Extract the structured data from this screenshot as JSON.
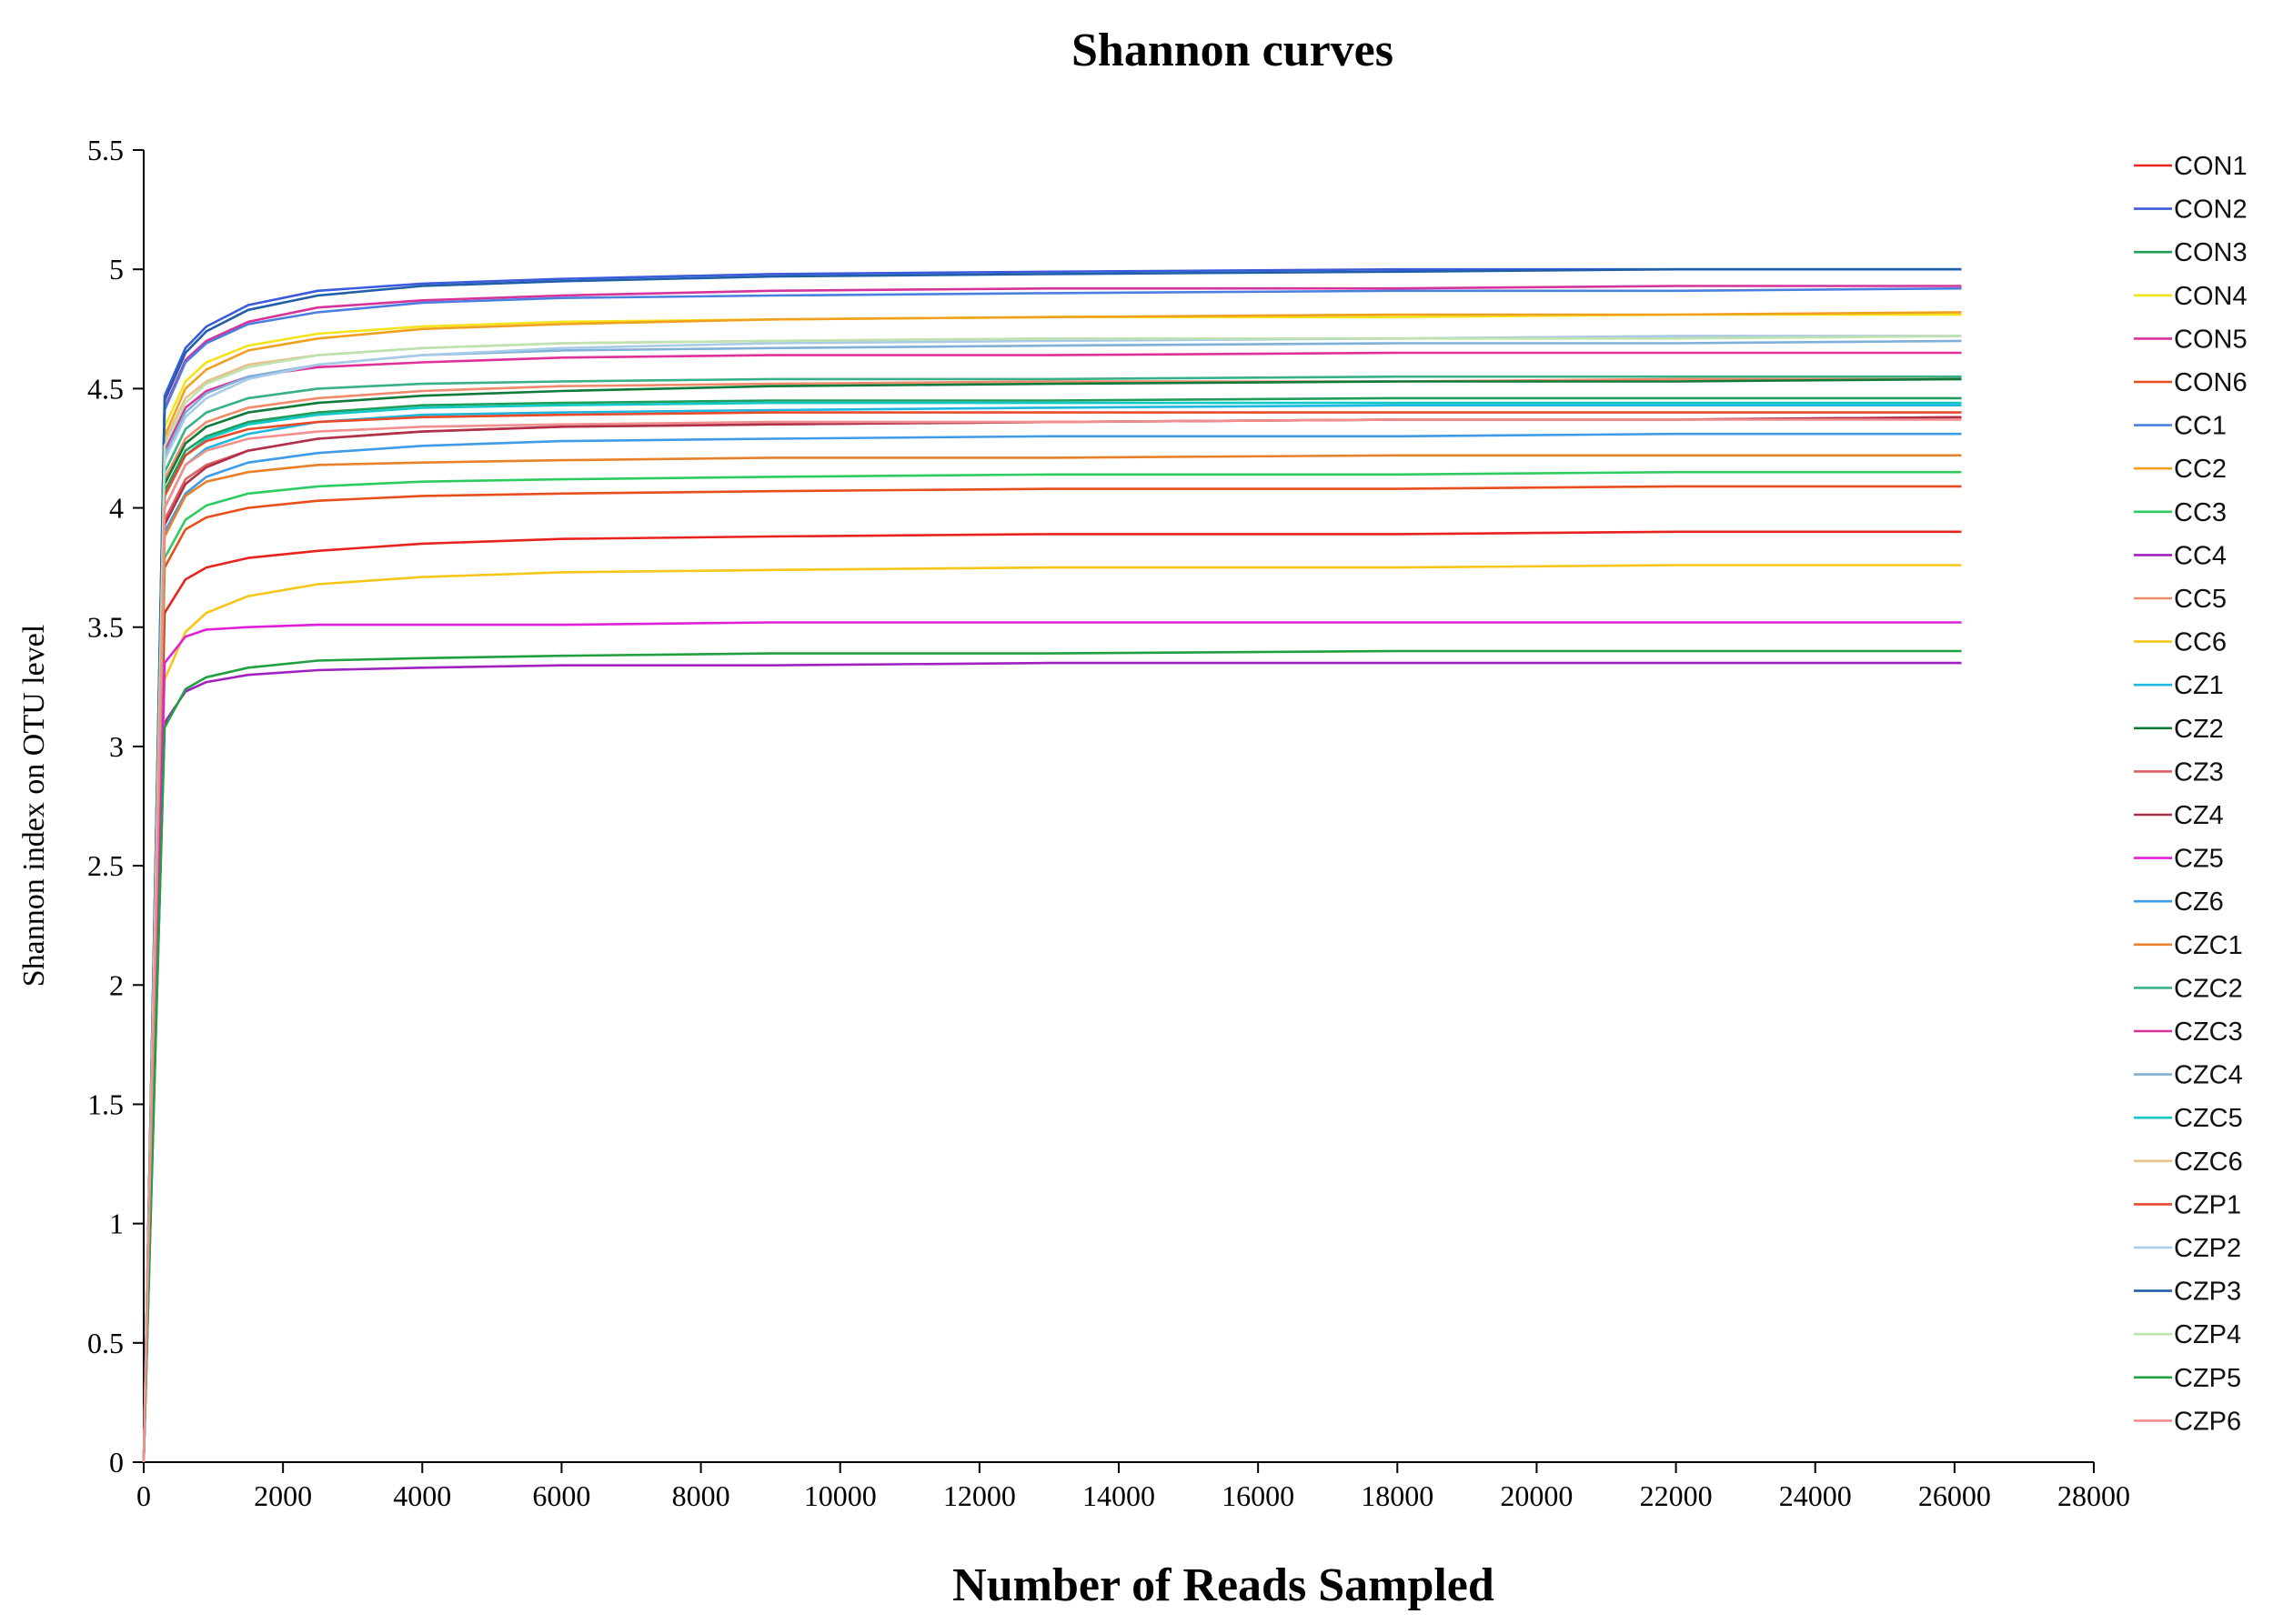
{
  "chart_data": {
    "type": "line",
    "title": "Shannon curves",
    "xlabel": "Number of Reads Sampled",
    "ylabel": "Shannon index on OTU level",
    "xlim": [
      0,
      28000
    ],
    "ylim": [
      0,
      5.5
    ],
    "x_ticks": [
      "0",
      "2000",
      "4000",
      "6000",
      "8000",
      "10000",
      "12000",
      "14000",
      "16000",
      "18000",
      "20000",
      "22000",
      "24000",
      "26000",
      "28000"
    ],
    "y_ticks": [
      "0",
      "0.5",
      "1",
      "1.5",
      "2",
      "2.5",
      "3",
      "3.5",
      "4",
      "4.5",
      "5",
      "5.5"
    ],
    "x_tick_values": [
      0,
      2000,
      4000,
      6000,
      8000,
      10000,
      12000,
      14000,
      16000,
      18000,
      20000,
      22000,
      24000,
      26000,
      28000
    ],
    "y_tick_values": [
      0,
      0.5,
      1,
      1.5,
      2,
      2.5,
      3,
      3.5,
      4,
      4.5,
      5,
      5.5
    ],
    "legend_position": "right",
    "grid": false,
    "x": [
      0,
      300,
      600,
      900,
      1500,
      2500,
      4000,
      6000,
      9000,
      13000,
      18000,
      22000,
      26100
    ],
    "series": [
      {
        "name": "CON1",
        "color": "#e8231f",
        "values": [
          0,
          3.56,
          3.7,
          3.75,
          3.79,
          3.82,
          3.85,
          3.87,
          3.88,
          3.89,
          3.89,
          3.9,
          3.9
        ]
      },
      {
        "name": "CON2",
        "color": "#3b5bdb",
        "values": [
          0,
          4.47,
          4.67,
          4.76,
          4.85,
          4.91,
          4.94,
          4.96,
          4.98,
          4.99,
          5.0,
          5.0,
          5.0
        ]
      },
      {
        "name": "CON3",
        "color": "#1e9e5a",
        "values": [
          0,
          4.07,
          4.24,
          4.3,
          4.36,
          4.4,
          4.43,
          4.44,
          4.45,
          4.45,
          4.46,
          4.46,
          4.46
        ]
      },
      {
        "name": "CON4",
        "color": "#f5e31a",
        "values": [
          0,
          4.34,
          4.53,
          4.61,
          4.68,
          4.73,
          4.76,
          4.78,
          4.79,
          4.8,
          4.8,
          4.81,
          4.81
        ]
      },
      {
        "name": "CON5",
        "color": "#d6339a",
        "values": [
          0,
          4.42,
          4.62,
          4.7,
          4.78,
          4.84,
          4.87,
          4.89,
          4.91,
          4.92,
          4.92,
          4.93,
          4.93
        ]
      },
      {
        "name": "CON6",
        "color": "#e84e1b",
        "values": [
          0,
          3.75,
          3.91,
          3.96,
          4.0,
          4.03,
          4.05,
          4.06,
          4.07,
          4.08,
          4.08,
          4.09,
          4.09
        ]
      },
      {
        "name": "CC1",
        "color": "#4a7fe0",
        "values": [
          0,
          4.41,
          4.61,
          4.69,
          4.77,
          4.82,
          4.86,
          4.88,
          4.89,
          4.9,
          4.91,
          4.91,
          4.92
        ]
      },
      {
        "name": "CC2",
        "color": "#f0a020",
        "values": [
          0,
          4.3,
          4.5,
          4.58,
          4.66,
          4.71,
          4.75,
          4.77,
          4.79,
          4.8,
          4.81,
          4.81,
          4.82
        ]
      },
      {
        "name": "CC3",
        "color": "#2ecc60",
        "values": [
          0,
          3.79,
          3.95,
          4.01,
          4.06,
          4.09,
          4.11,
          4.12,
          4.13,
          4.14,
          4.14,
          4.15,
          4.15
        ]
      },
      {
        "name": "CC4",
        "color": "#a020c0",
        "values": [
          0,
          3.1,
          3.23,
          3.27,
          3.3,
          3.32,
          3.33,
          3.34,
          3.34,
          3.35,
          3.35,
          3.35,
          3.35
        ]
      },
      {
        "name": "CC5",
        "color": "#f08a6a",
        "values": [
          0,
          4.12,
          4.29,
          4.36,
          4.42,
          4.46,
          4.49,
          4.51,
          4.52,
          4.53,
          4.53,
          4.54,
          4.54
        ]
      },
      {
        "name": "CC6",
        "color": "#f5c518",
        "values": [
          0,
          3.28,
          3.48,
          3.56,
          3.63,
          3.68,
          3.71,
          3.73,
          3.74,
          3.75,
          3.75,
          3.76,
          3.76
        ]
      },
      {
        "name": "CZ1",
        "color": "#1fb7e0",
        "values": [
          0,
          4.0,
          4.18,
          4.25,
          4.31,
          4.36,
          4.39,
          4.4,
          4.41,
          4.42,
          4.43,
          4.43,
          4.43
        ]
      },
      {
        "name": "CZ2",
        "color": "#0f7a3a",
        "values": [
          0,
          4.1,
          4.27,
          4.34,
          4.4,
          4.44,
          4.47,
          4.49,
          4.51,
          4.52,
          4.53,
          4.53,
          4.54
        ]
      },
      {
        "name": "CZ3",
        "color": "#d96060",
        "values": [
          0,
          3.95,
          4.12,
          4.18,
          4.24,
          4.29,
          4.32,
          4.34,
          4.35,
          4.36,
          4.37,
          4.37,
          4.38
        ]
      },
      {
        "name": "CZ4",
        "color": "#b0304a",
        "values": [
          0,
          3.93,
          4.1,
          4.17,
          4.24,
          4.29,
          4.32,
          4.34,
          4.35,
          4.36,
          4.37,
          4.37,
          4.38
        ]
      },
      {
        "name": "CZ5",
        "color": "#e020d8",
        "values": [
          0,
          3.35,
          3.46,
          3.49,
          3.5,
          3.51,
          3.51,
          3.51,
          3.52,
          3.52,
          3.52,
          3.52,
          3.52
        ]
      },
      {
        "name": "CZ6",
        "color": "#3d9be8",
        "values": [
          0,
          3.9,
          4.06,
          4.13,
          4.19,
          4.23,
          4.26,
          4.28,
          4.29,
          4.3,
          4.3,
          4.31,
          4.31
        ]
      },
      {
        "name": "CZC1",
        "color": "#e8802a",
        "values": [
          0,
          3.88,
          4.05,
          4.11,
          4.15,
          4.18,
          4.19,
          4.2,
          4.21,
          4.21,
          4.22,
          4.22,
          4.22
        ]
      },
      {
        "name": "CZC2",
        "color": "#38b08a",
        "values": [
          0,
          4.15,
          4.33,
          4.4,
          4.46,
          4.5,
          4.52,
          4.53,
          4.54,
          4.54,
          4.55,
          4.55,
          4.55
        ]
      },
      {
        "name": "CZC3",
        "color": "#e0309a",
        "values": [
          0,
          4.24,
          4.42,
          4.49,
          4.55,
          4.59,
          4.61,
          4.63,
          4.64,
          4.64,
          4.65,
          4.65,
          4.65
        ]
      },
      {
        "name": "CZC4",
        "color": "#7fb0d8",
        "values": [
          0,
          4.22,
          4.4,
          4.48,
          4.55,
          4.6,
          4.64,
          4.66,
          4.67,
          4.68,
          4.69,
          4.69,
          4.7
        ]
      },
      {
        "name": "CZC5",
        "color": "#10c8c8",
        "values": [
          0,
          4.05,
          4.22,
          4.29,
          4.35,
          4.39,
          4.42,
          4.43,
          4.44,
          4.44,
          4.44,
          4.44,
          4.44
        ]
      },
      {
        "name": "CZC6",
        "color": "#e8c08a",
        "values": [
          0,
          4.28,
          4.46,
          4.53,
          4.6,
          4.64,
          4.67,
          4.69,
          4.7,
          4.71,
          4.71,
          4.72,
          4.72
        ]
      },
      {
        "name": "CZP1",
        "color": "#e84a2a",
        "values": [
          0,
          4.05,
          4.22,
          4.28,
          4.33,
          4.36,
          4.38,
          4.39,
          4.4,
          4.4,
          4.4,
          4.4,
          4.4
        ]
      },
      {
        "name": "CZP2",
        "color": "#a8cce8",
        "values": [
          0,
          4.2,
          4.38,
          4.46,
          4.54,
          4.6,
          4.64,
          4.67,
          4.69,
          4.7,
          4.71,
          4.72,
          4.72
        ]
      },
      {
        "name": "CZP3",
        "color": "#1f5fa8",
        "values": [
          0,
          4.45,
          4.65,
          4.74,
          4.83,
          4.89,
          4.93,
          4.95,
          4.97,
          4.98,
          4.99,
          5.0,
          5.0
        ]
      },
      {
        "name": "CZP4",
        "color": "#bfe3b0",
        "values": [
          0,
          4.26,
          4.44,
          4.52,
          4.59,
          4.64,
          4.67,
          4.69,
          4.7,
          4.71,
          4.71,
          4.71,
          4.72
        ]
      },
      {
        "name": "CZP5",
        "color": "#20a040",
        "values": [
          0,
          3.08,
          3.24,
          3.29,
          3.33,
          3.36,
          3.37,
          3.38,
          3.39,
          3.39,
          3.4,
          3.4,
          3.4
        ]
      },
      {
        "name": "CZP6",
        "color": "#f28f8f",
        "values": [
          0,
          4.0,
          4.18,
          4.24,
          4.29,
          4.32,
          4.34,
          4.35,
          4.36,
          4.36,
          4.37,
          4.37,
          4.37
        ]
      }
    ]
  }
}
